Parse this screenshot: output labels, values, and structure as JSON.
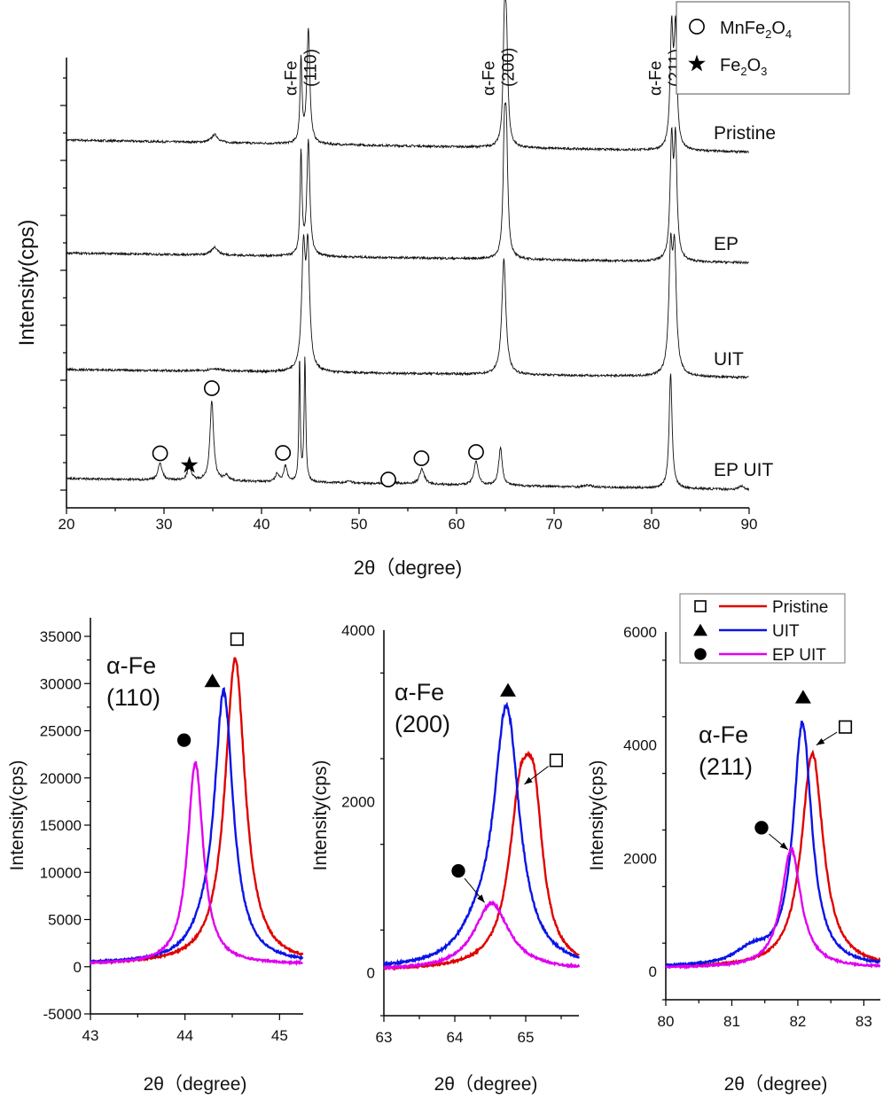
{
  "chart_data": [
    {
      "type": "line",
      "xlabel": "2θ（degree)",
      "ylabel": "Intensity(cps)",
      "xlim": [
        20,
        90
      ],
      "xticks": [
        20,
        30,
        40,
        50,
        60,
        70,
        80,
        90
      ],
      "y_tick_labels": false,
      "stacked_offset": true,
      "legend": {
        "position": "top-right",
        "entries": [
          {
            "symbol": "open-circle",
            "label": "MnFe",
            "sub1": "2",
            "mid": "O",
            "sub2": "4"
          },
          {
            "symbol": "star",
            "label": "Fe",
            "sub1": "2",
            "mid": "O",
            "sub2": "3"
          }
        ]
      },
      "peak_labels": [
        {
          "x": 44.3,
          "line1": "α-Fe",
          "line2": "(110)"
        },
        {
          "x": 64.6,
          "line1": "α-Fe",
          "line2": "(200)"
        },
        {
          "x": 81.7,
          "line1": "α-Fe",
          "line2": "(211)"
        }
      ],
      "series": [
        {
          "name": "Pristine",
          "offset": 80,
          "background": [
            3,
            0.3
          ],
          "peaks": [
            [
              35.2,
              1.8,
              0.4
            ],
            [
              44.05,
              19,
              0.12
            ],
            [
              44.8,
              26,
              0.18
            ],
            [
              64.9,
              22,
              0.15
            ],
            [
              65.1,
              24,
              0.18
            ],
            [
              82.05,
              26,
              0.18
            ],
            [
              82.45,
              26,
              0.18
            ]
          ]
        },
        {
          "name": "EP",
          "offset": 55,
          "background": [
            2.5,
            0.3
          ],
          "peaks": [
            [
              35.2,
              1.8,
              0.4
            ],
            [
              44.05,
              23,
              0.12
            ],
            [
              44.8,
              26,
              0.18
            ],
            [
              64.9,
              22,
              0.15
            ],
            [
              65.1,
              26,
              0.18
            ],
            [
              82.05,
              26,
              0.18
            ],
            [
              82.45,
              26,
              0.18
            ]
          ]
        },
        {
          "name": "UIT",
          "offset": 29,
          "background": [
            2.2,
            0.4
          ],
          "peaks": [
            [
              35.2,
              0.6,
              0.8
            ],
            [
              44.3,
              26,
              0.22
            ],
            [
              44.75,
              26,
              0.22
            ],
            [
              64.85,
              26,
              0.25
            ],
            [
              81.95,
              26,
              0.22
            ],
            [
              82.35,
              26,
              0.22
            ]
          ]
        },
        {
          "name": "EP UIT",
          "offset": 4,
          "background": [
            2.6,
            0.1
          ],
          "peaks": [
            [
              29.6,
              3.8,
              0.25
            ],
            [
              32.6,
              3,
              0.25
            ],
            [
              34.9,
              18,
              0.22
            ],
            [
              36.4,
              1.2,
              0.3
            ],
            [
              41.6,
              1.8,
              0.2
            ],
            [
              42.45,
              3.6,
              0.22
            ],
            [
              43.9,
              28,
              0.08
            ],
            [
              44.45,
              28,
              0.1
            ],
            [
              49.0,
              0.5,
              0.3
            ],
            [
              53.2,
              0.9,
              0.4
            ],
            [
              56.45,
              3.4,
              0.3
            ],
            [
              62.0,
              5.5,
              0.25
            ],
            [
              64.5,
              8.5,
              0.22
            ],
            [
              73.5,
              0.4,
              0.4
            ],
            [
              81.95,
              26,
              0.18
            ],
            [
              89.2,
              0.8,
              0.3
            ]
          ]
        }
      ],
      "markers": [
        {
          "symbol": "open-circle",
          "x": 29.6,
          "y": 12.3
        },
        {
          "symbol": "star",
          "x": 32.6,
          "y": 9.6
        },
        {
          "symbol": "open-circle",
          "x": 34.9,
          "y": 27
        },
        {
          "symbol": "open-circle",
          "x": 42.2,
          "y": 12.4
        },
        {
          "symbol": "open-circle",
          "x": 53.0,
          "y": 6.4
        },
        {
          "symbol": "open-circle",
          "x": 56.4,
          "y": 11.2
        },
        {
          "symbol": "open-circle",
          "x": 62.0,
          "y": 12.6
        }
      ]
    },
    {
      "type": "line",
      "xlabel": "2θ（degree)",
      "ylabel": "Intensity(cps)",
      "xlim": [
        43,
        45.25
      ],
      "ylim": [
        -5000,
        36000
      ],
      "xticks": [
        43,
        44,
        45
      ],
      "yticks": [
        -5000,
        0,
        5000,
        10000,
        15000,
        20000,
        25000,
        30000,
        35000
      ],
      "annotation": {
        "line1": "α-Fe",
        "line2": "(110)"
      },
      "series": [
        {
          "name": "Pristine",
          "color": "#e00000",
          "baseline": 250,
          "peaks": [
            [
              44.53,
              32300,
              0.13
            ]
          ]
        },
        {
          "name": "UIT",
          "color": "#0a14e6",
          "baseline": 300,
          "peaks": [
            [
              44.41,
              28200,
              0.12
            ],
            [
              44.2,
              1500,
              0.2
            ]
          ]
        },
        {
          "name": "EP UIT",
          "color": "#e000f0",
          "baseline": 250,
          "peaks": [
            [
              44.11,
              21400,
              0.1
            ]
          ]
        }
      ],
      "markers": [
        {
          "symbol": "open-square",
          "x": 44.55,
          "y": 34700
        },
        {
          "symbol": "triangle",
          "x": 44.29,
          "y": 30300
        },
        {
          "symbol": "filled-circle",
          "x": 43.99,
          "y": 24000
        }
      ]
    },
    {
      "type": "line",
      "xlabel": "2θ（degree)",
      "ylabel": "Intensity(cps)",
      "xlim": [
        63,
        65.75
      ],
      "ylim": [
        -500,
        4000
      ],
      "xticks": [
        63,
        64,
        65
      ],
      "yticks": [
        0,
        2000,
        4000
      ],
      "annotation": {
        "line1": "α-Fe",
        "line2": "(200)"
      },
      "series": [
        {
          "name": "Pristine",
          "color": "#e00000",
          "baseline": 30,
          "peaks": [
            [
              64.93,
              1850,
              0.2
            ],
            [
              65.12,
              1400,
              0.15
            ]
          ]
        },
        {
          "name": "UIT",
          "color": "#0a14e6",
          "baseline": 40,
          "peaks": [
            [
              64.73,
              3000,
              0.22
            ],
            [
              64.3,
              250,
              0.3
            ]
          ]
        },
        {
          "name": "EP UIT",
          "color": "#e000f0",
          "baseline": 30,
          "peaks": [
            [
              64.52,
              780,
              0.3
            ]
          ]
        }
      ],
      "markers": [
        {
          "symbol": "triangle",
          "x": 64.75,
          "y": 3300,
          "arrow": false
        },
        {
          "symbol": "open-square",
          "x": 65.43,
          "y": 2480,
          "arrow_to": [
            64.98,
            2200
          ]
        },
        {
          "symbol": "filled-circle",
          "x": 64.05,
          "y": 1190,
          "arrow_to": [
            64.42,
            820
          ]
        }
      ]
    },
    {
      "type": "line",
      "xlabel": "2θ（degree)",
      "ylabel": "Intensity(cps)",
      "xlim": [
        80,
        83.25
      ],
      "ylim": [
        -500,
        6000
      ],
      "xticks": [
        80,
        81,
        82,
        83
      ],
      "yticks": [
        0,
        2000,
        4000,
        6000
      ],
      "annotation": {
        "line1": "α-Fe",
        "line2": "(211)"
      },
      "legend": {
        "position": "top-right",
        "entries": [
          {
            "symbol": "open-square",
            "color": "#e00000",
            "label": "Pristine"
          },
          {
            "symbol": "triangle",
            "color": "#0a14e6",
            "label": "UIT"
          },
          {
            "symbol": "filled-circle",
            "color": "#e000f0",
            "label": "EP UIT"
          }
        ]
      },
      "series": [
        {
          "name": "Pristine",
          "color": "#e00000",
          "baseline": 60,
          "peaks": [
            [
              82.22,
              3800,
              0.2
            ]
          ]
        },
        {
          "name": "UIT",
          "color": "#0a14e6",
          "baseline": 70,
          "peaks": [
            [
              82.07,
              4300,
              0.17
            ],
            [
              81.3,
              250,
              0.3
            ]
          ]
        },
        {
          "name": "EP UIT",
          "color": "#e000f0",
          "baseline": 60,
          "peaks": [
            [
              81.9,
              2100,
              0.18
            ]
          ]
        }
      ],
      "markers": [
        {
          "symbol": "triangle",
          "x": 82.08,
          "y": 4850
        },
        {
          "symbol": "open-square",
          "x": 82.72,
          "y": 4320,
          "arrow_to": [
            82.28,
            4000
          ]
        },
        {
          "symbol": "filled-circle",
          "x": 81.45,
          "y": 2540,
          "arrow_to": [
            81.85,
            2150
          ]
        }
      ]
    }
  ]
}
